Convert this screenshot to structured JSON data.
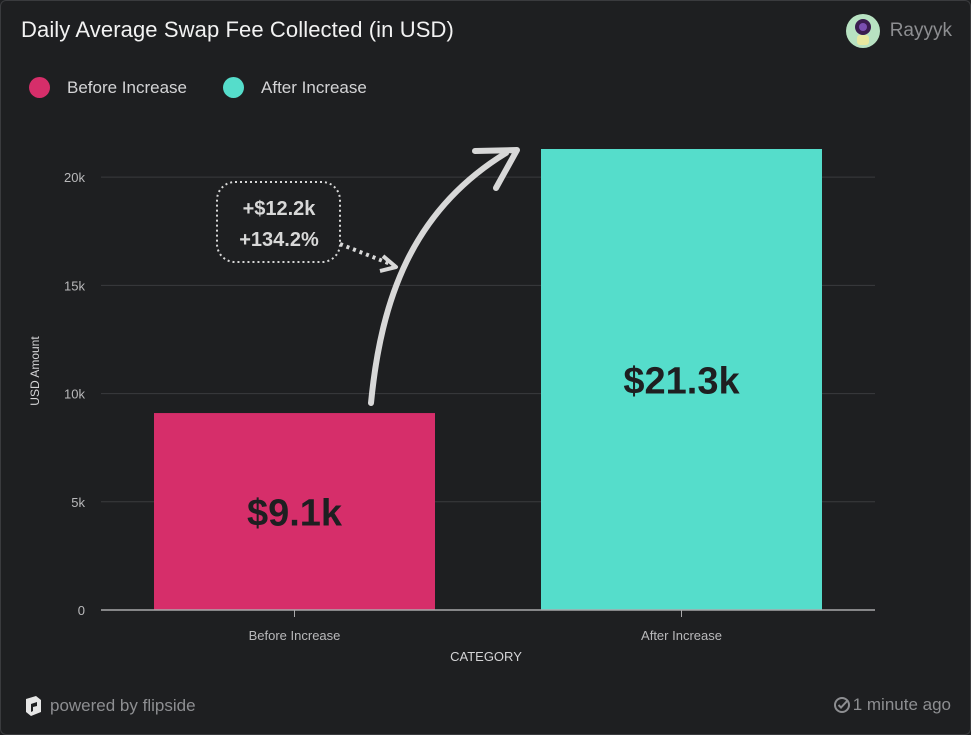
{
  "header": {
    "title": "Daily Average Swap Fee Collected (in USD)",
    "username": "Rayyyk"
  },
  "colors": {
    "before": "#d62e6a",
    "after": "#55ddcb",
    "gridline": "#3a3b3e",
    "axis_text": "#b9b9bb"
  },
  "chart_data": {
    "type": "bar",
    "categories": [
      "Before Increase",
      "After Increase"
    ],
    "values": [
      9100,
      21300
    ],
    "bar_labels": [
      "$9.1k",
      "$21.3k"
    ],
    "legend": [
      "Before Increase",
      "After Increase"
    ],
    "legend_position": "top-left",
    "xlabel": "CATEGORY",
    "ylabel": "USD Amount",
    "ylim": [
      0,
      21300
    ],
    "yticks": [
      0,
      5000,
      10000,
      15000,
      20000
    ],
    "ytick_labels": [
      "0",
      "5k",
      "10k",
      "15k",
      "20k"
    ],
    "grid": true,
    "annotation": {
      "line1": "+$12.2k",
      "line2": "+134.2%"
    }
  },
  "footer": {
    "powered_by": "powered by flipside",
    "updated": "1 minute ago"
  }
}
